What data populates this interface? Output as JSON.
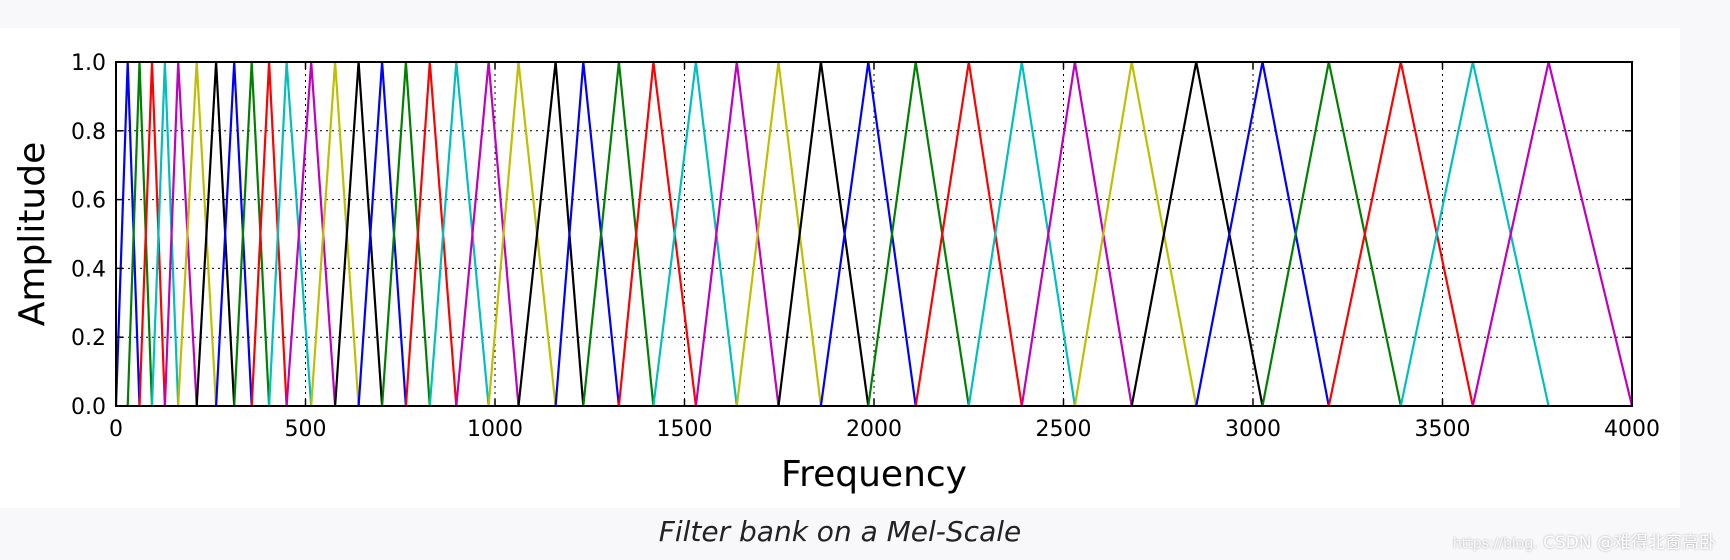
{
  "chart_data": {
    "type": "line",
    "title": "",
    "xlabel": "Frequency",
    "ylabel": "Amplitude",
    "xlim": [
      0,
      4000
    ],
    "ylim": [
      0,
      1.0
    ],
    "xticks": [
      0,
      500,
      1000,
      1500,
      2000,
      2500,
      3000,
      3500,
      4000
    ],
    "yticks": [
      0.0,
      0.2,
      0.4,
      0.6,
      0.8,
      1.0
    ],
    "ytick_labels": [
      "0.0",
      "0.2",
      "0.4",
      "0.6",
      "0.8",
      "1.0"
    ],
    "grid": true,
    "grid_style": "dotted",
    "filter_points": [
      0,
      31,
      62,
      95,
      129,
      164,
      213,
      264,
      312,
      358,
      404,
      450,
      515,
      578,
      640,
      702,
      765,
      828,
      898,
      983,
      1062,
      1160,
      1233,
      1327,
      1418,
      1530,
      1638,
      1748,
      1860,
      1985,
      2110,
      2250,
      2390,
      2530,
      2680,
      2850,
      3025,
      3200,
      3390,
      3580,
      3780,
      4000
    ],
    "series_colors": [
      "#0000ff",
      "#008000",
      "#ff0000",
      "#00bfbf",
      "#bf00bf",
      "#bfbf00",
      "#000000"
    ]
  },
  "caption": "Filter bank on a Mel-Scale",
  "watermark": {
    "url": "https://blog.",
    "text": "CSDN @难得北窗高卧"
  }
}
